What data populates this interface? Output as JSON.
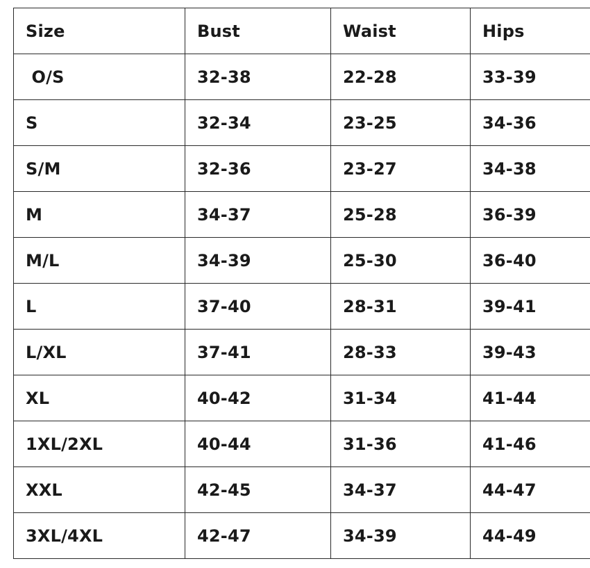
{
  "table": {
    "headers": [
      "Size",
      "Bust",
      "Waist",
      "Hips"
    ],
    "rows": [
      [
        " O/S",
        "32-38",
        "22-28",
        "33-39"
      ],
      [
        "S",
        "32-34",
        "23-25",
        "34-36"
      ],
      [
        "S/M",
        "32-36",
        "23-27",
        "34-38"
      ],
      [
        "M",
        "34-37",
        "25-28",
        "36-39"
      ],
      [
        "M/L",
        "34-39",
        "25-30",
        "36-40"
      ],
      [
        "L",
        "37-40",
        "28-31",
        "39-41"
      ],
      [
        "L/XL",
        "37-41",
        "28-33",
        "39-43"
      ],
      [
        "XL",
        "40-42",
        "31-34",
        "41-44"
      ],
      [
        "1XL/2XL",
        "40-44",
        "31-36",
        "41-46"
      ],
      [
        "XXL",
        "42-45",
        "34-37",
        "44-47"
      ],
      [
        "3XL/4XL",
        "42-47",
        "34-39",
        "44-49"
      ]
    ]
  }
}
